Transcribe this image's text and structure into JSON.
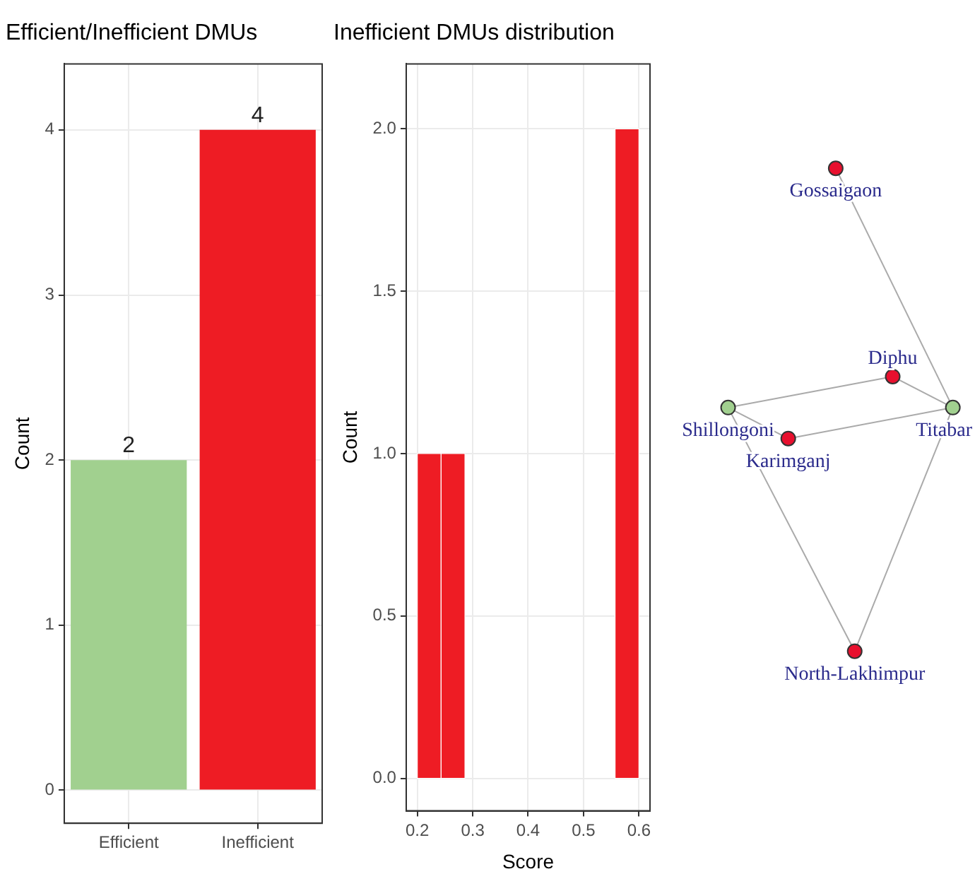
{
  "chart_data": [
    {
      "type": "bar",
      "title": "Efficient/Inefficient DMUs",
      "ylabel": "Count",
      "categories": [
        "Efficient",
        "Inefficient"
      ],
      "values": [
        2,
        4
      ],
      "colors": [
        "#a1d08f",
        "#ee1c24"
      ],
      "ylim": [
        -0.2,
        4.4
      ],
      "yticks": [
        0,
        1,
        2,
        3,
        4
      ],
      "grid": true,
      "data_labels": true
    },
    {
      "type": "histogram",
      "title": "Inefficient DMUs distribution",
      "xlabel": "Score",
      "ylabel": "Count",
      "bins": [
        0.2,
        0.243,
        0.286,
        0.557,
        0.6
      ],
      "values": [
        1,
        1,
        0,
        2
      ],
      "color": "#ee1c24",
      "xlim": [
        0.18,
        0.62
      ],
      "xticks": [
        0.2,
        0.3,
        0.4,
        0.5,
        0.6
      ],
      "ylim": [
        -0.1,
        2.2
      ],
      "yticks": [
        {
          "value": 0,
          "label": "0.0"
        },
        {
          "value": 0.5,
          "label": "0.5"
        },
        {
          "value": 1,
          "label": "1.0"
        },
        {
          "value": 1.5,
          "label": "1.5"
        },
        {
          "value": 2,
          "label": "2.0"
        }
      ],
      "grid": true
    },
    {
      "type": "other",
      "annotations": [
        "Gossaigaon",
        "Diphu",
        "Shillongoni",
        "Karimganj",
        "Titabar",
        "North-Lakhimpur"
      ]
    }
  ]
}
